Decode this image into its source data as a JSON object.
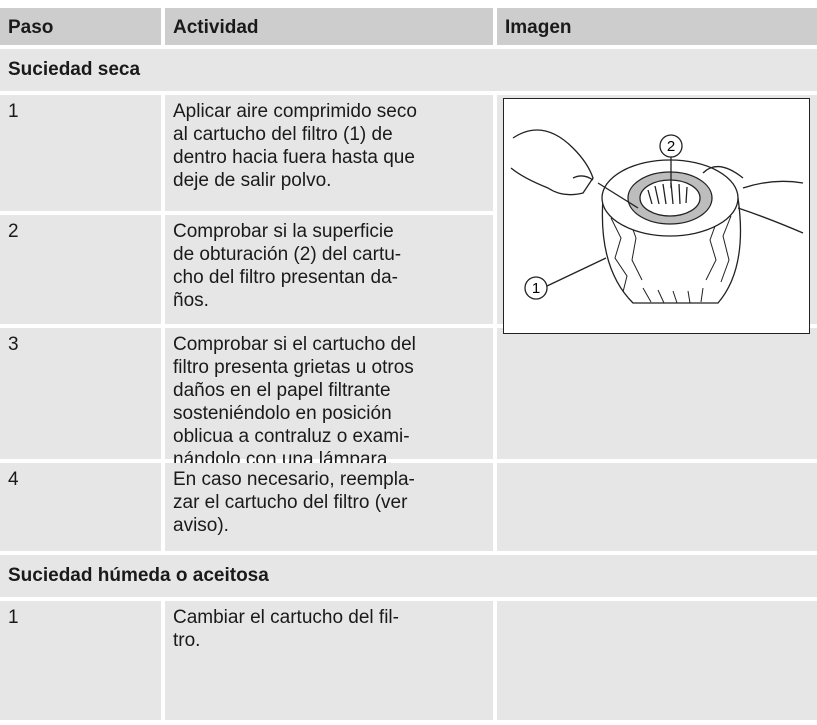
{
  "table": {
    "header": [
      "Paso",
      "Actividad",
      "Imagen"
    ],
    "sections": [
      {
        "title": "Suciedad seca",
        "rows": [
          {
            "step": "1",
            "activity": [
              "Aplicar aire comprimido seco",
              "al cartucho del filtro (1) de",
              "dentro hacia fuera hasta que",
              "deje de salir polvo."
            ]
          },
          {
            "step": "2",
            "activity": [
              "Comprobar si la superficie",
              "de obturación (2) del cartu-",
              "cho del filtro presentan da-",
              "ños."
            ]
          },
          {
            "step": "3",
            "activity": [
              "Comprobar si el cartucho del",
              "filtro presenta grietas u otros",
              "daños en el papel filtrante",
              "sosteniéndolo en posición",
              "oblicua a contraluz o exami-",
              "nándolo con una lámpara."
            ]
          },
          {
            "step": "4",
            "activity": [
              "En caso necesario, reempla-",
              "zar el cartucho del filtro (ver",
              "aviso)."
            ]
          }
        ]
      },
      {
        "title": "Suciedad húmeda o aceitosa",
        "rows": [
          {
            "step": "1",
            "activity": [
              "Cambiar el cartucho del fil-",
              "tro."
            ]
          }
        ]
      }
    ]
  },
  "image": {
    "callouts": [
      "2",
      "1"
    ]
  }
}
